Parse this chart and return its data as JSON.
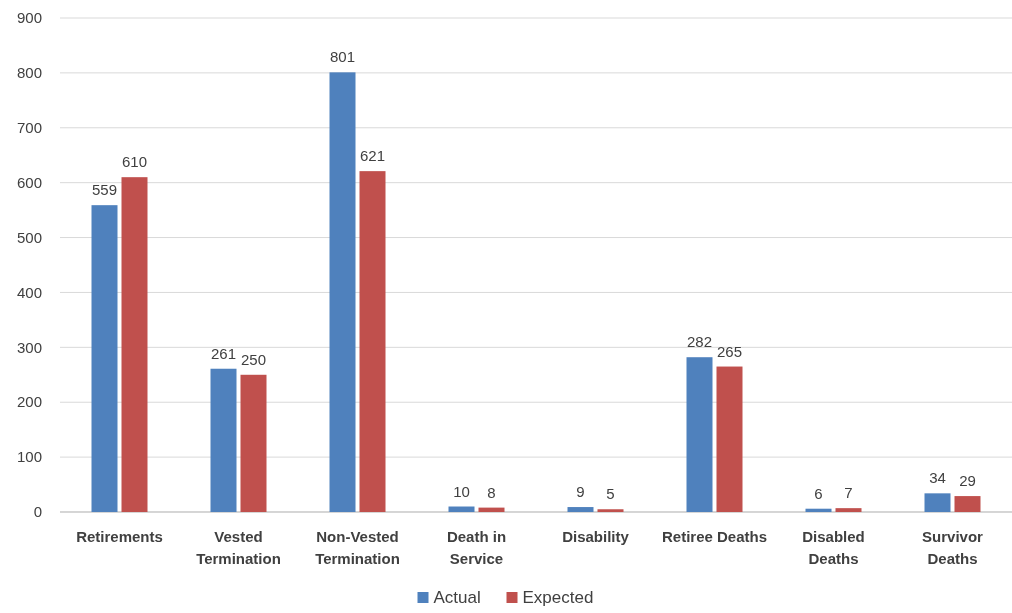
{
  "chart_data": {
    "type": "bar",
    "categories": [
      "Retirements",
      "Vested Termination",
      "Non-Vested Termination",
      "Death in Service",
      "Disability",
      "Retiree Deaths",
      "Disabled Deaths",
      "Survivor Deaths"
    ],
    "series": [
      {
        "name": "Actual",
        "color": "#4f81bd",
        "values": [
          559,
          261,
          801,
          10,
          9,
          282,
          6,
          34
        ]
      },
      {
        "name": "Expected",
        "color": "#c0504d",
        "values": [
          610,
          250,
          621,
          8,
          5,
          265,
          7,
          29
        ]
      }
    ],
    "ylim": [
      0,
      900
    ],
    "yticks": [
      0,
      100,
      200,
      300,
      400,
      500,
      600,
      700,
      800,
      900
    ],
    "grid": "y",
    "legend": "bottom",
    "data_labels": true
  }
}
